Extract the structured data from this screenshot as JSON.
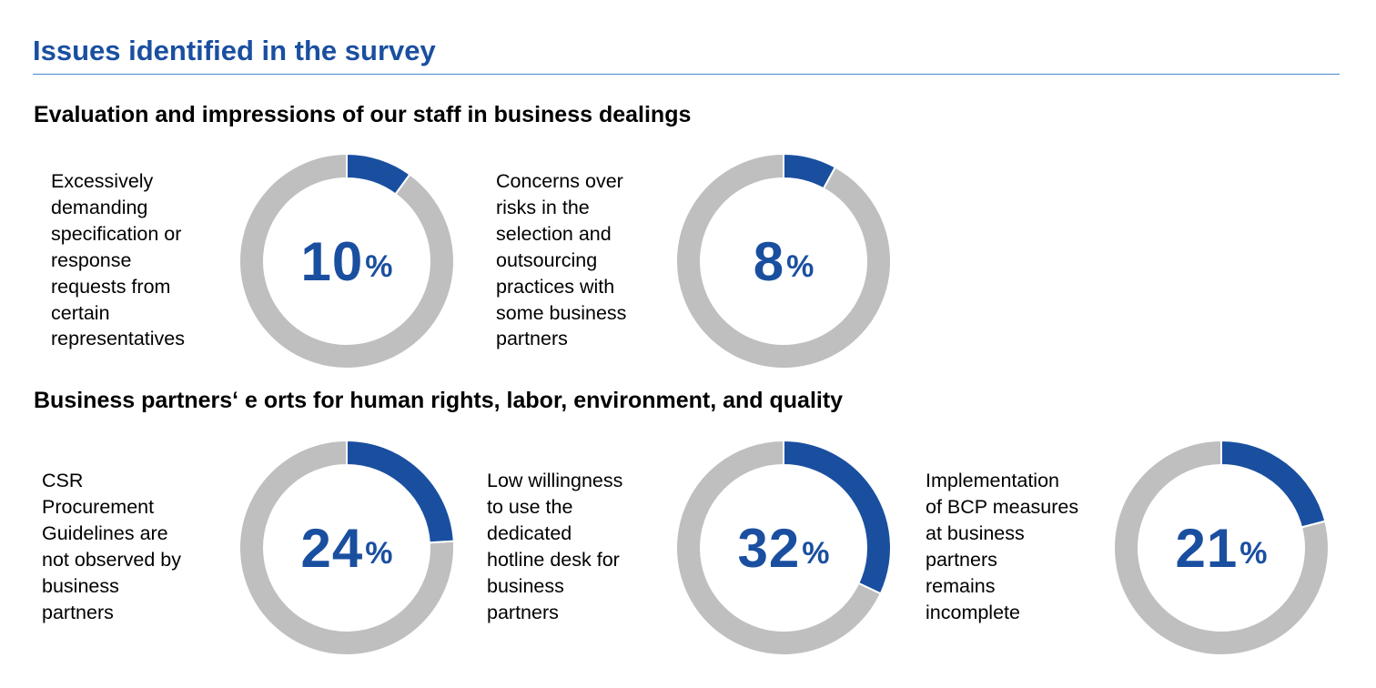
{
  "page": {
    "title": "Issues identified in the survey"
  },
  "colors": {
    "accent": "#1a4fa0",
    "ring_bg": "#bfbfc0",
    "rule": "#4a86c8"
  },
  "chart_data": [
    {
      "type": "pie",
      "group": "Evaluation and impressions of our staff in business dealings",
      "label": "Excessively\ndemanding\nspecification or\nresponse\nrequests from\ncertain\nrepresentatives",
      "value": 10,
      "unit": "%"
    },
    {
      "type": "pie",
      "group": "Evaluation and impressions of our staff in business dealings",
      "label": "Concerns over\nrisks in the\nselection and\noutsourcing\npractices with\nsome business\npartners",
      "value": 8,
      "unit": "%"
    },
    {
      "type": "pie",
      "group": "Business partners‘ e orts for human rights, labor, environment, and quality",
      "label": "CSR\nProcurement\nGuidelines are\nnot observed by\nbusiness\npartners",
      "value": 24,
      "unit": "%"
    },
    {
      "type": "pie",
      "group": "Business partners‘ e orts for human rights, labor, environment, and quality",
      "label": "Low willingness\nto use the\ndedicated\nhotline desk for\nbusiness\npartners",
      "value": 32,
      "unit": "%"
    },
    {
      "type": "pie",
      "group": "Business partners‘ e orts for human rights, labor, environment, and quality",
      "label": "Implementation\nof BCP measures\nat business\npartners\nremains\nincomplete",
      "value": 21,
      "unit": "%"
    }
  ],
  "sections": [
    {
      "heading": "Evaluation and impressions of our staff in business dealings"
    },
    {
      "heading": "Business partners‘ e orts for human rights, labor, environment, and quality"
    }
  ]
}
